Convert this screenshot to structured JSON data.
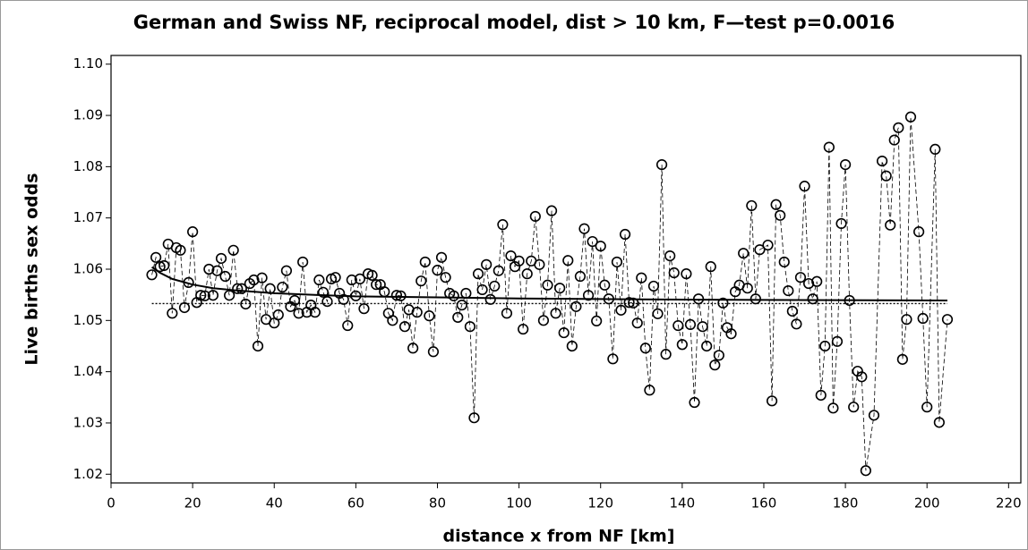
{
  "chart_data": {
    "type": "scatter",
    "title": "German and Swiss NF, reciprocal model, dist >  10 km, F—test p=0.0016",
    "x_label": "distance x from NF [km]",
    "y_label": "Live births sex odds",
    "xlim": [
      0,
      223
    ],
    "ylim": [
      1.0183,
      1.1017
    ],
    "xticks": [
      0,
      20,
      40,
      60,
      80,
      100,
      120,
      140,
      160,
      180,
      200,
      220
    ],
    "yticks": [
      {
        "value": 1.1,
        "label": "1.10"
      },
      1.09,
      1.08,
      1.07,
      1.06,
      1.05,
      1.04,
      1.03,
      1.02
    ],
    "series": [
      {
        "color": "#000000",
        "style": "markers-dashed",
        "x": [
          10,
          11,
          12,
          13,
          14,
          15,
          16,
          17,
          18,
          19,
          20,
          21,
          22,
          23,
          24,
          25,
          26,
          27,
          28,
          29,
          30,
          31,
          32,
          33,
          34,
          35,
          36,
          37,
          38,
          39,
          40,
          41,
          42,
          43,
          44,
          45,
          46,
          47,
          48,
          49,
          50,
          51,
          52,
          53,
          54,
          55,
          56,
          57,
          58,
          59,
          60,
          61,
          62,
          63,
          64,
          65,
          66,
          67,
          68,
          69,
          70,
          71,
          72,
          73,
          74,
          75,
          76,
          77,
          78,
          79,
          80,
          81,
          82,
          83,
          84,
          85,
          86,
          87,
          88,
          89,
          90,
          91,
          92,
          93,
          94,
          95,
          96,
          97,
          98,
          99,
          100,
          101,
          102,
          103,
          104,
          105,
          106,
          107,
          108,
          109,
          110,
          111,
          112,
          113,
          114,
          115,
          116,
          117,
          118,
          119,
          120,
          121,
          122,
          123,
          124,
          125,
          126,
          127,
          128,
          129,
          130,
          131,
          132,
          133,
          134,
          135,
          136,
          137,
          138,
          139,
          140,
          141,
          142,
          143,
          144,
          145,
          146,
          147,
          148,
          149,
          150,
          151,
          152,
          153,
          154,
          155,
          156,
          157,
          158,
          159,
          161,
          162,
          163,
          164,
          165,
          166,
          167,
          168,
          169,
          170,
          171,
          172,
          173,
          174,
          175,
          176,
          177,
          178,
          179,
          180,
          181,
          182,
          183,
          184,
          185,
          187,
          189,
          190,
          191,
          192,
          193,
          194,
          195,
          196,
          198,
          199,
          200,
          202,
          203,
          205
        ],
        "values": [
          1.0589,
          1.0623,
          1.0605,
          1.0607,
          1.0649,
          1.0514,
          1.0642,
          1.0637,
          1.0525,
          1.0574,
          1.0673,
          1.0535,
          1.0549,
          1.0548,
          1.06,
          1.0549,
          1.0597,
          1.0621,
          1.0586,
          1.0549,
          1.0637,
          1.0562,
          1.0562,
          1.0532,
          1.0572,
          1.0579,
          1.045,
          1.0583,
          1.0502,
          1.0562,
          1.0495,
          1.0511,
          1.0565,
          1.0597,
          1.0527,
          1.0539,
          1.0514,
          1.0614,
          1.0516,
          1.053,
          1.0516,
          1.0579,
          1.0555,
          1.0537,
          1.0581,
          1.0584,
          1.0553,
          1.0541,
          1.049,
          1.0579,
          1.0548,
          1.0581,
          1.0523,
          1.0591,
          1.0588,
          1.057,
          1.057,
          1.0556,
          1.0514,
          1.05,
          1.0549,
          1.0548,
          1.0488,
          1.0521,
          1.0446,
          1.0516,
          1.0577,
          1.0614,
          1.0509,
          1.0439,
          1.0598,
          1.0623,
          1.0584,
          1.0553,
          1.0548,
          1.0506,
          1.053,
          1.0553,
          1.0488,
          1.031,
          1.0591,
          1.056,
          1.0609,
          1.0541,
          1.0567,
          1.0597,
          1.0687,
          1.0514,
          1.0626,
          1.0605,
          1.0616,
          1.0483,
          1.0591,
          1.0616,
          1.0703,
          1.0609,
          1.05,
          1.0569,
          1.0714,
          1.0514,
          1.0563,
          1.0476,
          1.0617,
          1.045,
          1.0527,
          1.0586,
          1.0679,
          1.0549,
          1.0654,
          1.0499,
          1.0645,
          1.0569,
          1.0542,
          1.0425,
          1.0614,
          1.052,
          1.0668,
          1.0535,
          1.0534,
          1.0495,
          1.0583,
          1.0446,
          1.0364,
          1.0567,
          1.0513,
          1.0804,
          1.0434,
          1.0626,
          1.0593,
          1.049,
          1.0453,
          1.0591,
          1.0492,
          1.034,
          1.0542,
          1.0488,
          1.045,
          1.0605,
          1.0413,
          1.0432,
          1.0534,
          1.0486,
          1.0474,
          1.0556,
          1.0569,
          1.0631,
          1.0563,
          1.0724,
          1.0542,
          1.0638,
          1.0647,
          1.0343,
          1.0726,
          1.0705,
          1.0614,
          1.0558,
          1.0518,
          1.0493,
          1.0584,
          1.0762,
          1.0572,
          1.0542,
          1.0576,
          1.0354,
          1.045,
          1.0838,
          1.0329,
          1.0459,
          1.0689,
          1.0804,
          1.0539,
          1.0331,
          1.0401,
          1.039,
          1.0207,
          1.0315,
          1.0811,
          1.0782,
          1.0686,
          1.0852,
          1.0876,
          1.0424,
          1.0502,
          1.0897,
          1.0673,
          1.0504,
          1.0331,
          1.0834,
          1.0301,
          1.0502
        ]
      },
      {
        "color": "#000000",
        "style": "solid",
        "x": [
          10,
          12,
          15,
          20,
          25,
          30,
          40,
          50,
          60,
          80,
          100,
          130,
          160,
          205
        ],
        "values": [
          1.0604,
          1.0593,
          1.0581,
          1.057,
          1.0563,
          1.0559,
          1.0553,
          1.055,
          1.0547,
          1.0545,
          1.0543,
          1.0541,
          1.054,
          1.0539
        ]
      },
      {
        "color": "#000000",
        "style": "dotted",
        "x": [
          10,
          205
        ],
        "values": [
          1.0533,
          1.0533
        ]
      }
    ]
  }
}
